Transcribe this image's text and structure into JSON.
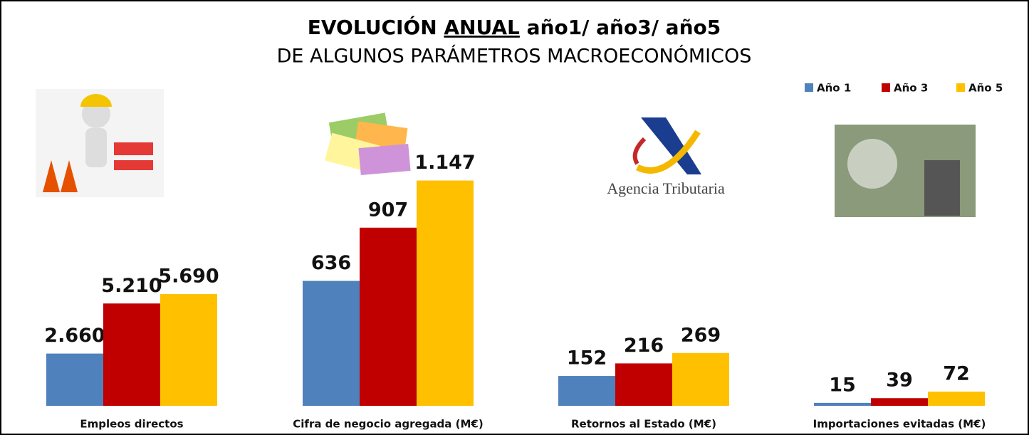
{
  "header": {
    "title_parts": [
      "EVOLUCIÓN ",
      "ANUAL",
      " año1/ año3/ año5"
    ],
    "subtitle": "DE ALGUNOS PARÁMETROS MACROECONÓMICOS"
  },
  "logo_text": "Agencia Tributaria",
  "legend": [
    {
      "name": "Año 1",
      "color": "#4f81bd"
    },
    {
      "name": "Año 3",
      "color": "#c00000"
    },
    {
      "name": "Año 5",
      "color": "#ffc000"
    }
  ],
  "chart_data": [
    {
      "type": "bar",
      "xlabel": "Empleos directos",
      "values": [
        2660,
        5210,
        5690
      ],
      "value_labels": [
        "2.660",
        "5.210",
        "5.690"
      ],
      "ylim": [
        0,
        14500
      ]
    },
    {
      "type": "bar",
      "xlabel": "Cifra de negocio agregada (M€)",
      "values": [
        636,
        907,
        1147
      ],
      "value_labels": [
        "636",
        "907",
        "1.147"
      ],
      "ylim": [
        0,
        1450
      ]
    },
    {
      "type": "bar",
      "xlabel": "Retornos al Estado (M€)",
      "values": [
        152,
        216,
        269
      ],
      "ylim": [
        0,
        1450
      ]
    },
    {
      "type": "bar",
      "xlabel": "Importaciones evitadas (M€)",
      "values": [
        15,
        39,
        72
      ],
      "ylim": [
        0,
        1450
      ]
    }
  ]
}
